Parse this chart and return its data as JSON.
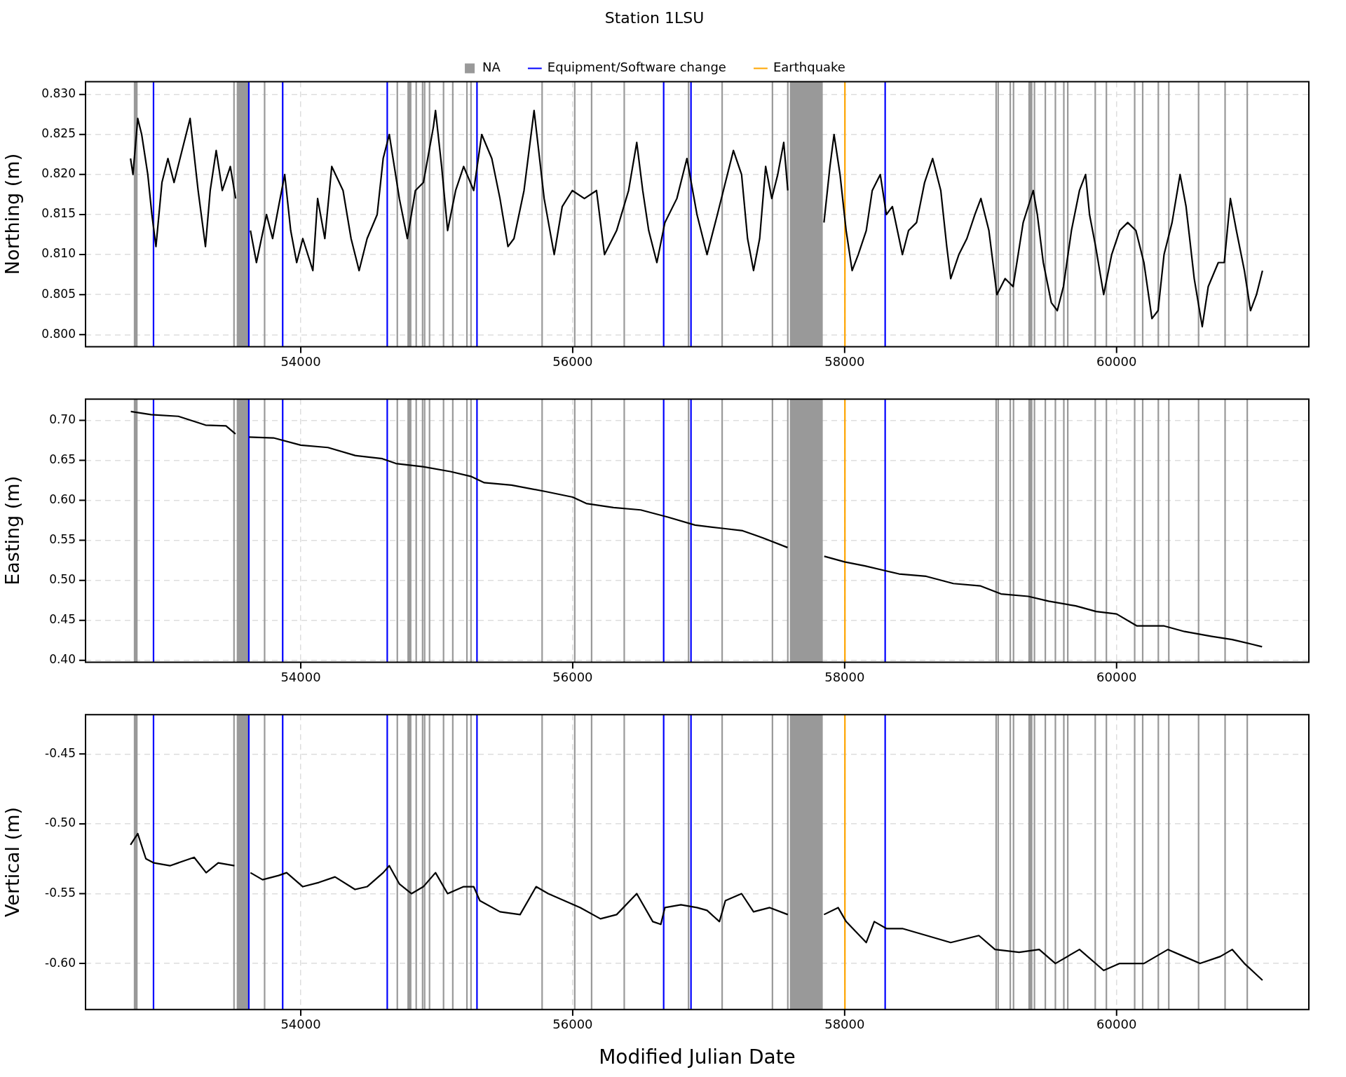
{
  "chart_data": [
    {
      "type": "line",
      "title": "Station 1LSU",
      "ylabel": "Northing (m)",
      "legend": "top",
      "grid": true,
      "xlim": [
        52417,
        61414
      ],
      "xticks": [
        54000,
        56000,
        58000,
        60000
      ],
      "ylim": [
        0.7985,
        0.8316
      ],
      "yticks": [
        {
          "value": 0.8,
          "label": "0.800"
        },
        {
          "value": 0.805,
          "label": "0.805"
        },
        {
          "value": 0.81,
          "label": "0.810"
        },
        {
          "value": 0.815,
          "label": "0.815"
        },
        {
          "value": 0.82,
          "label": "0.820"
        },
        {
          "value": 0.825,
          "label": "0.825"
        },
        {
          "value": 0.83,
          "label": "0.830"
        }
      ],
      "series": [
        {
          "color": "#000000",
          "x": [
            52748,
            52766,
            52801,
            52830,
            52875,
            52905,
            52935,
            52979,
            53023,
            53068,
            53112,
            53186,
            53245,
            53299,
            53334,
            53378,
            53423,
            53482,
            53521,
            53570,
            53630,
            53674,
            53748,
            53793,
            53837,
            53882,
            53926,
            53970,
            54015,
            54089,
            54124,
            54177,
            54228,
            54311,
            54370,
            54429,
            54488,
            54562,
            54606,
            54651,
            54725,
            54784,
            54843,
            54902,
            54976,
            54991,
            55036,
            55080,
            55139,
            55198,
            55272,
            55331,
            55405,
            55465,
            55524,
            55568,
            55642,
            55716,
            55790,
            55864,
            55923,
            55997,
            56086,
            56175,
            56234,
            56323,
            56411,
            56471,
            56515,
            56559,
            56619,
            56678,
            56766,
            56840,
            56914,
            56988,
            57064,
            57123,
            57182,
            57242,
            57286,
            57330,
            57375,
            57419,
            57464,
            57508,
            57552,
            57582,
            57700,
            57848,
            57892,
            57922,
            57966,
            58011,
            58055,
            58100,
            58159,
            58203,
            58262,
            58307,
            58351,
            58425,
            58470,
            58529,
            58588,
            58647,
            58707,
            58751,
            58780,
            58840,
            58899,
            58958,
            59002,
            59061,
            59120,
            59180,
            59239,
            59313,
            59387,
            59417,
            59461,
            59520,
            59564,
            59609,
            59668,
            59727,
            59772,
            59801,
            59846,
            59905,
            59964,
            60023,
            60082,
            60142,
            60201,
            60260,
            60305,
            60349,
            60408,
            60467,
            60511,
            60571,
            60630,
            60674,
            60748,
            60792,
            60837,
            60881,
            60940,
            60985,
            61029,
            61073
          ],
          "values": [
            0.822,
            0.82,
            0.827,
            0.825,
            0.82,
            0.815,
            0.811,
            0.819,
            0.822,
            0.819,
            0.822,
            0.827,
            0.818,
            0.811,
            0.818,
            0.823,
            0.818,
            0.821,
            0.817,
            null,
            0.813,
            0.809,
            0.815,
            0.812,
            0.816,
            0.82,
            0.813,
            0.809,
            0.812,
            0.808,
            0.817,
            0.812,
            0.821,
            0.818,
            0.812,
            0.808,
            0.812,
            0.815,
            0.822,
            0.825,
            0.817,
            0.812,
            0.818,
            0.819,
            0.826,
            0.828,
            0.821,
            0.813,
            0.818,
            0.821,
            0.818,
            0.825,
            0.822,
            0.817,
            0.811,
            0.812,
            0.818,
            0.828,
            0.817,
            0.81,
            0.816,
            0.818,
            0.817,
            0.818,
            0.81,
            0.813,
            0.818,
            0.824,
            0.818,
            0.813,
            0.809,
            0.814,
            0.817,
            0.822,
            0.815,
            0.81,
            0.815,
            0.819,
            0.823,
            0.82,
            0.812,
            0.808,
            0.812,
            0.821,
            0.817,
            0.82,
            0.824,
            0.818,
            null,
            0.814,
            0.821,
            0.825,
            0.82,
            0.813,
            0.808,
            0.81,
            0.813,
            0.818,
            0.82,
            0.815,
            0.816,
            0.81,
            0.813,
            0.814,
            0.819,
            0.822,
            0.818,
            0.811,
            0.807,
            0.81,
            0.812,
            0.815,
            0.817,
            0.813,
            0.805,
            0.807,
            0.806,
            0.814,
            0.818,
            0.815,
            0.809,
            0.804,
            0.803,
            0.806,
            0.813,
            0.818,
            0.82,
            0.815,
            0.811,
            0.805,
            0.81,
            0.813,
            0.814,
            0.813,
            0.809,
            0.802,
            0.803,
            0.81,
            0.814,
            0.82,
            0.816,
            0.807,
            0.801,
            0.806,
            0.809,
            0.809,
            0.817,
            0.813,
            0.808,
            0.803,
            0.805,
            0.808
          ]
        }
      ],
      "bands": [
        {
          "axis": "x",
          "from": 52772,
          "to": 52800,
          "color": "#999999",
          "label": "NA"
        },
        {
          "axis": "x",
          "from": 53529,
          "to": 53615,
          "color": "#999999"
        },
        {
          "axis": "x",
          "from": 54784,
          "to": 54814,
          "color": "#999999"
        },
        {
          "axis": "x",
          "from": 57597,
          "to": 57839,
          "color": "#999999"
        },
        {
          "axis": "x",
          "from": 59351,
          "to": 59381,
          "color": "#999999"
        }
      ],
      "ref_lines": [
        {
          "axis": "x",
          "value": 52917,
          "color": "#0000ff",
          "label": "Equipment/Software change"
        },
        {
          "axis": "x",
          "value": 58002,
          "color": "#ffa500",
          "label": "Earthquake"
        },
        {
          "axis": "x",
          "value": 53509,
          "color": "#999999"
        },
        {
          "axis": "x",
          "value": 53734,
          "color": "#999999"
        },
        {
          "axis": "x",
          "value": 54710,
          "color": "#999999"
        },
        {
          "axis": "x",
          "value": 54849,
          "color": "#999999"
        },
        {
          "axis": "x",
          "value": 54896,
          "color": "#999999"
        },
        {
          "axis": "x",
          "value": 54911,
          "color": "#999999"
        },
        {
          "axis": "x",
          "value": 54947,
          "color": "#999999"
        },
        {
          "axis": "x",
          "value": 55050,
          "color": "#999999"
        },
        {
          "axis": "x",
          "value": 55118,
          "color": "#999999"
        },
        {
          "axis": "x",
          "value": 55222,
          "color": "#999999"
        },
        {
          "axis": "x",
          "value": 55252,
          "color": "#999999"
        },
        {
          "axis": "x",
          "value": 55775,
          "color": "#999999"
        },
        {
          "axis": "x",
          "value": 56015,
          "color": "#999999"
        },
        {
          "axis": "x",
          "value": 56139,
          "color": "#999999"
        },
        {
          "axis": "x",
          "value": 56379,
          "color": "#999999"
        },
        {
          "axis": "x",
          "value": 56852,
          "color": "#999999"
        },
        {
          "axis": "x",
          "value": 57099,
          "color": "#999999"
        },
        {
          "axis": "x",
          "value": 57469,
          "color": "#999999"
        },
        {
          "axis": "x",
          "value": 57582,
          "color": "#999999"
        },
        {
          "axis": "x",
          "value": 59114,
          "color": "#999999"
        },
        {
          "axis": "x",
          "value": 59129,
          "color": "#999999"
        },
        {
          "axis": "x",
          "value": 59218,
          "color": "#999999"
        },
        {
          "axis": "x",
          "value": 59242,
          "color": "#999999"
        },
        {
          "axis": "x",
          "value": 59396,
          "color": "#999999"
        },
        {
          "axis": "x",
          "value": 59476,
          "color": "#999999"
        },
        {
          "axis": "x",
          "value": 59550,
          "color": "#999999"
        },
        {
          "axis": "x",
          "value": 59612,
          "color": "#999999"
        },
        {
          "axis": "x",
          "value": 59641,
          "color": "#999999"
        },
        {
          "axis": "x",
          "value": 59843,
          "color": "#999999"
        },
        {
          "axis": "x",
          "value": 59925,
          "color": "#999999"
        },
        {
          "axis": "x",
          "value": 60133,
          "color": "#999999"
        },
        {
          "axis": "x",
          "value": 60192,
          "color": "#999999"
        },
        {
          "axis": "x",
          "value": 60307,
          "color": "#999999"
        },
        {
          "axis": "x",
          "value": 60384,
          "color": "#999999"
        },
        {
          "axis": "x",
          "value": 60603,
          "color": "#999999"
        },
        {
          "axis": "x",
          "value": 60798,
          "color": "#999999"
        },
        {
          "axis": "x",
          "value": 60961,
          "color": "#999999"
        },
        {
          "axis": "x",
          "value": 53618,
          "color": "#0000ff"
        },
        {
          "axis": "x",
          "value": 53867,
          "color": "#0000ff"
        },
        {
          "axis": "x",
          "value": 54636,
          "color": "#0000ff"
        },
        {
          "axis": "x",
          "value": 55296,
          "color": "#0000ff"
        },
        {
          "axis": "x",
          "value": 56669,
          "color": "#0000ff"
        },
        {
          "axis": "x",
          "value": 56870,
          "color": "#0000ff"
        },
        {
          "axis": "x",
          "value": 58298,
          "color": "#0000ff"
        }
      ]
    },
    {
      "type": "line",
      "ylabel": "Easting (m)",
      "grid": true,
      "xlim": [
        52417,
        61414
      ],
      "xticks": [
        54000,
        56000,
        58000,
        60000
      ],
      "ylim": [
        0.3977,
        0.7265
      ],
      "yticks": [
        {
          "value": 0.4,
          "label": "0.40"
        },
        0.45,
        {
          "value": 0.5,
          "label": "0.50"
        },
        0.55,
        {
          "value": 0.6,
          "label": "0.60"
        },
        0.65,
        {
          "value": 0.7,
          "label": "0.70"
        }
      ],
      "series": [
        {
          "color": "#000000",
          "x": [
            52750,
            52900,
            53100,
            53300,
            53450,
            53520,
            53570,
            53620,
            53800,
            54000,
            54200,
            54400,
            54600,
            54700,
            54900,
            55100,
            55250,
            55350,
            55550,
            55800,
            56000,
            56100,
            56300,
            56500,
            56700,
            56900,
            57100,
            57250,
            57400,
            57580,
            57700,
            57850,
            58000,
            58150,
            58300,
            58400,
            58600,
            58800,
            59000,
            59150,
            59350,
            59500,
            59700,
            59850,
            60000,
            60150,
            60350,
            60500,
            60700,
            60850,
            61000,
            61070
          ],
          "values": [
            0.711,
            0.707,
            0.705,
            0.694,
            0.693,
            0.683,
            null,
            0.679,
            0.678,
            0.669,
            0.666,
            0.656,
            0.652,
            0.646,
            0.642,
            0.636,
            0.63,
            0.622,
            0.619,
            0.611,
            0.604,
            0.596,
            0.591,
            0.588,
            0.579,
            0.569,
            0.565,
            0.562,
            0.553,
            0.541,
            null,
            0.53,
            0.523,
            0.518,
            0.512,
            0.508,
            0.505,
            0.496,
            0.493,
            0.483,
            0.48,
            0.474,
            0.468,
            0.461,
            0.458,
            0.443,
            0.443,
            0.436,
            0.43,
            0.426,
            0.42,
            0.417
          ]
        }
      ],
      "bands": [
        {
          "axis": "x",
          "from": 52772,
          "to": 52800,
          "color": "#999999"
        },
        {
          "axis": "x",
          "from": 53529,
          "to": 53615,
          "color": "#999999"
        },
        {
          "axis": "x",
          "from": 54784,
          "to": 54814,
          "color": "#999999"
        },
        {
          "axis": "x",
          "from": 57597,
          "to": 57839,
          "color": "#999999"
        },
        {
          "axis": "x",
          "from": 59351,
          "to": 59381,
          "color": "#999999"
        }
      ],
      "ref_lines": [
        {
          "axis": "x",
          "value": 53509,
          "color": "#999999"
        },
        {
          "axis": "x",
          "value": 53734,
          "color": "#999999"
        },
        {
          "axis": "x",
          "value": 54710,
          "color": "#999999"
        },
        {
          "axis": "x",
          "value": 54849,
          "color": "#999999"
        },
        {
          "axis": "x",
          "value": 54896,
          "color": "#999999"
        },
        {
          "axis": "x",
          "value": 54911,
          "color": "#999999"
        },
        {
          "axis": "x",
          "value": 54947,
          "color": "#999999"
        },
        {
          "axis": "x",
          "value": 55050,
          "color": "#999999"
        },
        {
          "axis": "x",
          "value": 55118,
          "color": "#999999"
        },
        {
          "axis": "x",
          "value": 55222,
          "color": "#999999"
        },
        {
          "axis": "x",
          "value": 55252,
          "color": "#999999"
        },
        {
          "axis": "x",
          "value": 55775,
          "color": "#999999"
        },
        {
          "axis": "x",
          "value": 56015,
          "color": "#999999"
        },
        {
          "axis": "x",
          "value": 56139,
          "color": "#999999"
        },
        {
          "axis": "x",
          "value": 56379,
          "color": "#999999"
        },
        {
          "axis": "x",
          "value": 56852,
          "color": "#999999"
        },
        {
          "axis": "x",
          "value": 57099,
          "color": "#999999"
        },
        {
          "axis": "x",
          "value": 57469,
          "color": "#999999"
        },
        {
          "axis": "x",
          "value": 57582,
          "color": "#999999"
        },
        {
          "axis": "x",
          "value": 59114,
          "color": "#999999"
        },
        {
          "axis": "x",
          "value": 59129,
          "color": "#999999"
        },
        {
          "axis": "x",
          "value": 59218,
          "color": "#999999"
        },
        {
          "axis": "x",
          "value": 59242,
          "color": "#999999"
        },
        {
          "axis": "x",
          "value": 59396,
          "color": "#999999"
        },
        {
          "axis": "x",
          "value": 59476,
          "color": "#999999"
        },
        {
          "axis": "x",
          "value": 59550,
          "color": "#999999"
        },
        {
          "axis": "x",
          "value": 59612,
          "color": "#999999"
        },
        {
          "axis": "x",
          "value": 59641,
          "color": "#999999"
        },
        {
          "axis": "x",
          "value": 59843,
          "color": "#999999"
        },
        {
          "axis": "x",
          "value": 59925,
          "color": "#999999"
        },
        {
          "axis": "x",
          "value": 60133,
          "color": "#999999"
        },
        {
          "axis": "x",
          "value": 60192,
          "color": "#999999"
        },
        {
          "axis": "x",
          "value": 60307,
          "color": "#999999"
        },
        {
          "axis": "x",
          "value": 60384,
          "color": "#999999"
        },
        {
          "axis": "x",
          "value": 60603,
          "color": "#999999"
        },
        {
          "axis": "x",
          "value": 60798,
          "color": "#999999"
        },
        {
          "axis": "x",
          "value": 60961,
          "color": "#999999"
        },
        {
          "axis": "x",
          "value": 52917,
          "color": "#0000ff"
        },
        {
          "axis": "x",
          "value": 53618,
          "color": "#0000ff"
        },
        {
          "axis": "x",
          "value": 53867,
          "color": "#0000ff"
        },
        {
          "axis": "x",
          "value": 54636,
          "color": "#0000ff"
        },
        {
          "axis": "x",
          "value": 55296,
          "color": "#0000ff"
        },
        {
          "axis": "x",
          "value": 56669,
          "color": "#0000ff"
        },
        {
          "axis": "x",
          "value": 56870,
          "color": "#0000ff"
        },
        {
          "axis": "x",
          "value": 58298,
          "color": "#0000ff"
        },
        {
          "axis": "x",
          "value": 58002,
          "color": "#ffa500"
        }
      ]
    },
    {
      "type": "line",
      "ylabel": "Vertical (m)",
      "xlabel": "Modified Julian Date",
      "grid": true,
      "xlim": [
        52417,
        61414
      ],
      "xticks": [
        54000,
        56000,
        58000,
        60000
      ],
      "ylim": [
        -0.633,
        -0.4218
      ],
      "yticks": [
        -0.45,
        {
          "value": -0.5,
          "label": "-0.50"
        },
        -0.55,
        {
          "value": -0.6,
          "label": "-0.60"
        }
      ],
      "series": [
        {
          "color": "#000000",
          "x": [
            52748,
            52801,
            52861,
            52920,
            53038,
            53216,
            53304,
            53393,
            53512,
            53570,
            53630,
            53719,
            53837,
            53896,
            54015,
            54133,
            54252,
            54399,
            54488,
            54606,
            54651,
            54725,
            54814,
            54902,
            54991,
            55080,
            55198,
            55272,
            55317,
            55465,
            55613,
            55731,
            55820,
            55938,
            56056,
            56204,
            56323,
            56471,
            56589,
            56648,
            56678,
            56796,
            56914,
            56988,
            57079,
            57123,
            57242,
            57330,
            57449,
            57582,
            57700,
            57848,
            57952,
            58011,
            58159,
            58218,
            58307,
            58425,
            58603,
            58780,
            58987,
            59106,
            59283,
            59431,
            59550,
            59727,
            59905,
            60023,
            60201,
            60378,
            60496,
            60614,
            60763,
            60851,
            60940,
            61073
          ],
          "values": [
            -0.515,
            -0.507,
            -0.525,
            -0.528,
            -0.53,
            -0.524,
            -0.535,
            -0.528,
            -0.53,
            null,
            -0.535,
            -0.54,
            -0.537,
            -0.535,
            -0.545,
            -0.542,
            -0.538,
            -0.547,
            -0.545,
            -0.535,
            -0.53,
            -0.543,
            -0.55,
            -0.545,
            -0.535,
            -0.55,
            -0.545,
            -0.545,
            -0.555,
            -0.563,
            -0.565,
            -0.545,
            -0.55,
            -0.555,
            -0.56,
            -0.568,
            -0.565,
            -0.55,
            -0.57,
            -0.572,
            -0.56,
            -0.558,
            -0.56,
            -0.562,
            -0.57,
            -0.555,
            -0.55,
            -0.563,
            -0.56,
            -0.565,
            null,
            -0.565,
            -0.56,
            -0.57,
            -0.585,
            -0.57,
            -0.575,
            -0.575,
            -0.58,
            -0.585,
            -0.58,
            -0.59,
            -0.592,
            -0.59,
            -0.6,
            -0.59,
            -0.605,
            -0.6,
            -0.6,
            -0.59,
            -0.595,
            -0.6,
            -0.595,
            -0.59,
            -0.6,
            -0.612
          ]
        }
      ],
      "bands": [
        {
          "axis": "x",
          "from": 52772,
          "to": 52800,
          "color": "#999999"
        },
        {
          "axis": "x",
          "from": 53529,
          "to": 53615,
          "color": "#999999"
        },
        {
          "axis": "x",
          "from": 54784,
          "to": 54814,
          "color": "#999999"
        },
        {
          "axis": "x",
          "from": 57597,
          "to": 57839,
          "color": "#999999"
        },
        {
          "axis": "x",
          "from": 59351,
          "to": 59381,
          "color": "#999999"
        }
      ],
      "ref_lines": [
        {
          "axis": "x",
          "value": 53509,
          "color": "#999999"
        },
        {
          "axis": "x",
          "value": 53734,
          "color": "#999999"
        },
        {
          "axis": "x",
          "value": 54710,
          "color": "#999999"
        },
        {
          "axis": "x",
          "value": 54849,
          "color": "#999999"
        },
        {
          "axis": "x",
          "value": 54896,
          "color": "#999999"
        },
        {
          "axis": "x",
          "value": 54911,
          "color": "#999999"
        },
        {
          "axis": "x",
          "value": 54947,
          "color": "#999999"
        },
        {
          "axis": "x",
          "value": 55050,
          "color": "#999999"
        },
        {
          "axis": "x",
          "value": 55118,
          "color": "#999999"
        },
        {
          "axis": "x",
          "value": 55222,
          "color": "#999999"
        },
        {
          "axis": "x",
          "value": 55252,
          "color": "#999999"
        },
        {
          "axis": "x",
          "value": 55775,
          "color": "#999999"
        },
        {
          "axis": "x",
          "value": 56015,
          "color": "#999999"
        },
        {
          "axis": "x",
          "value": 56139,
          "color": "#999999"
        },
        {
          "axis": "x",
          "value": 56379,
          "color": "#999999"
        },
        {
          "axis": "x",
          "value": 56852,
          "color": "#999999"
        },
        {
          "axis": "x",
          "value": 57099,
          "color": "#999999"
        },
        {
          "axis": "x",
          "value": 57469,
          "color": "#999999"
        },
        {
          "axis": "x",
          "value": 57582,
          "color": "#999999"
        },
        {
          "axis": "x",
          "value": 59114,
          "color": "#999999"
        },
        {
          "axis": "x",
          "value": 59129,
          "color": "#999999"
        },
        {
          "axis": "x",
          "value": 59218,
          "color": "#999999"
        },
        {
          "axis": "x",
          "value": 59242,
          "color": "#999999"
        },
        {
          "axis": "x",
          "value": 59396,
          "color": "#999999"
        },
        {
          "axis": "x",
          "value": 59476,
          "color": "#999999"
        },
        {
          "axis": "x",
          "value": 59550,
          "color": "#999999"
        },
        {
          "axis": "x",
          "value": 59612,
          "color": "#999999"
        },
        {
          "axis": "x",
          "value": 59641,
          "color": "#999999"
        },
        {
          "axis": "x",
          "value": 59843,
          "color": "#999999"
        },
        {
          "axis": "x",
          "value": 59925,
          "color": "#999999"
        },
        {
          "axis": "x",
          "value": 60133,
          "color": "#999999"
        },
        {
          "axis": "x",
          "value": 60192,
          "color": "#999999"
        },
        {
          "axis": "x",
          "value": 60307,
          "color": "#999999"
        },
        {
          "axis": "x",
          "value": 60384,
          "color": "#999999"
        },
        {
          "axis": "x",
          "value": 60603,
          "color": "#999999"
        },
        {
          "axis": "x",
          "value": 60798,
          "color": "#999999"
        },
        {
          "axis": "x",
          "value": 60961,
          "color": "#999999"
        },
        {
          "axis": "x",
          "value": 52917,
          "color": "#0000ff"
        },
        {
          "axis": "x",
          "value": 53618,
          "color": "#0000ff"
        },
        {
          "axis": "x",
          "value": 53867,
          "color": "#0000ff"
        },
        {
          "axis": "x",
          "value": 54636,
          "color": "#0000ff"
        },
        {
          "axis": "x",
          "value": 55296,
          "color": "#0000ff"
        },
        {
          "axis": "x",
          "value": 56669,
          "color": "#0000ff"
        },
        {
          "axis": "x",
          "value": 56870,
          "color": "#0000ff"
        },
        {
          "axis": "x",
          "value": 58298,
          "color": "#0000ff"
        },
        {
          "axis": "x",
          "value": 58002,
          "color": "#ffa500"
        }
      ]
    }
  ]
}
